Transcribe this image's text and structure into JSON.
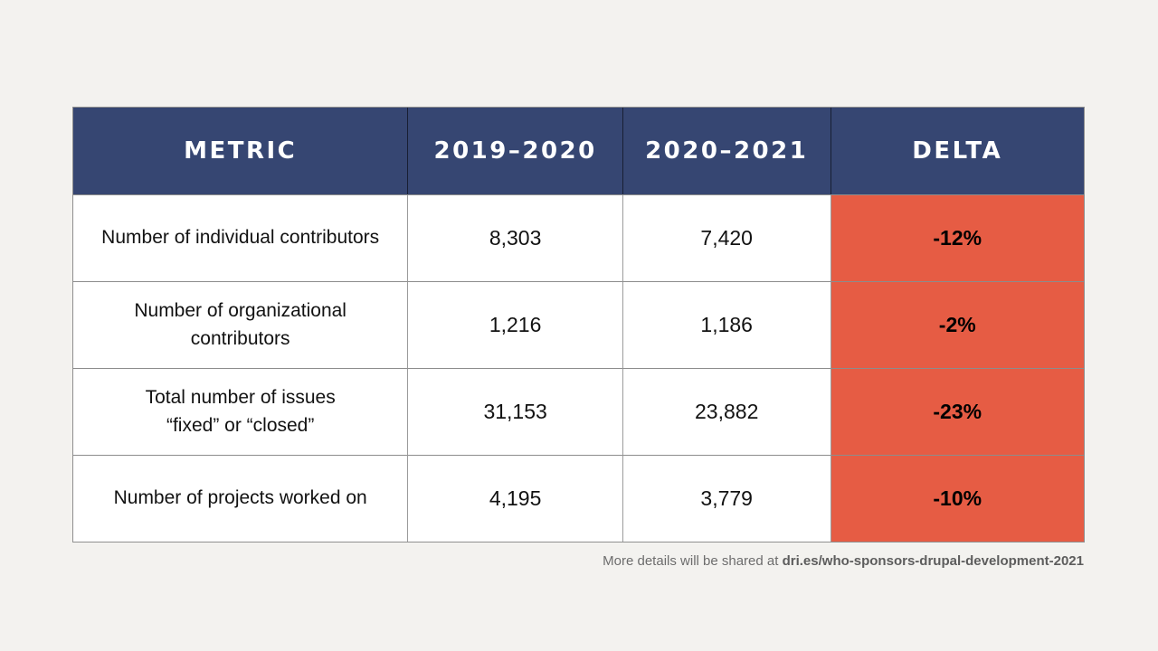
{
  "colors": {
    "page_background": "#f3f2ef",
    "header_background": "#364672",
    "header_text": "#ffffff",
    "delta_background": "#e65c44",
    "body_text": "#121212",
    "grid_line": "#8c8c8c"
  },
  "table": {
    "headers": [
      "METRIC",
      "2019–2020",
      "2020–2021",
      "DELTA"
    ],
    "rows": [
      {
        "metric": "Number of individual contributors",
        "y2019_2020": "8,303",
        "y2020_2021": "7,420",
        "delta": "-12%"
      },
      {
        "metric": "Number of organizational contributors",
        "y2019_2020": "1,216",
        "y2020_2021": "1,186",
        "delta": "-2%"
      },
      {
        "metric": "Total number of issues\n“fixed” or “closed”",
        "y2019_2020": "31,153",
        "y2020_2021": "23,882",
        "delta": "-23%"
      },
      {
        "metric": "Number of projects worked on",
        "y2019_2020": "4,195",
        "y2020_2021": "3,779",
        "delta": "-10%"
      }
    ]
  },
  "footer": {
    "text": "More details will be shared at ",
    "link": "dri.es/who-sponsors-drupal-development-2021"
  },
  "chart_data": {
    "type": "table",
    "columns": [
      "Metric",
      "2019–2020",
      "2020–2021",
      "Delta"
    ],
    "rows": [
      [
        "Number of individual contributors",
        8303,
        7420,
        "-12%"
      ],
      [
        "Number of organizational contributors",
        1216,
        1186,
        "-2%"
      ],
      [
        "Total number of issues “fixed” or “closed”",
        31153,
        23882,
        "-23%"
      ],
      [
        "Number of projects worked on",
        4195,
        3779,
        "-10%"
      ]
    ],
    "note": "More details will be shared at dri.es/who-sponsors-drupal-development-2021"
  }
}
